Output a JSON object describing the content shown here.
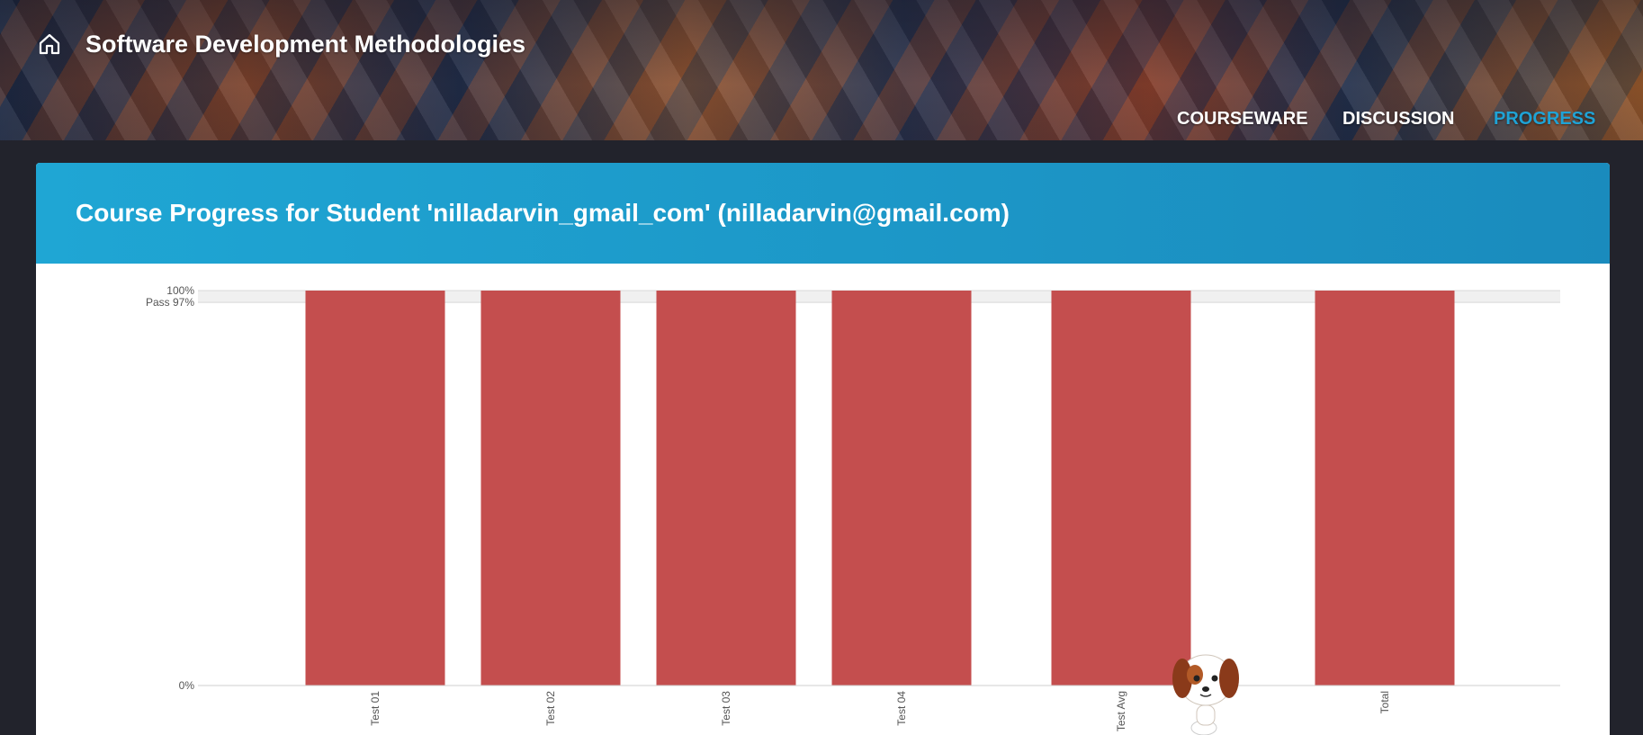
{
  "header": {
    "course_title": "Software Development Methodologies",
    "nav_tabs": [
      {
        "label": "COURSEWARE",
        "active": false
      },
      {
        "label": "DISCUSSION",
        "active": false
      },
      {
        "label": "PROGRESS",
        "active": true
      }
    ]
  },
  "card": {
    "title": "Course Progress for Student 'nilladarvin_gmail_com' (nilladarvin@gmail.com)"
  },
  "colors": {
    "bar": "#c44e4e",
    "accent": "#1fa3d6",
    "pass_band": "#f0f0f0"
  },
  "chart_data": {
    "type": "bar",
    "categories": [
      "Test 01",
      "Test 02",
      "Test 03",
      "Test 04",
      "Test Avg",
      "Total"
    ],
    "values": [
      100,
      100,
      100,
      100,
      100,
      100
    ],
    "ylim": [
      0,
      100
    ],
    "y_ticks": [
      {
        "value": 100,
        "label": "100%"
      },
      {
        "value": 97,
        "label": "Pass 97%"
      },
      {
        "value": 0,
        "label": "0%"
      }
    ],
    "pass_threshold": 97,
    "grid": true
  }
}
